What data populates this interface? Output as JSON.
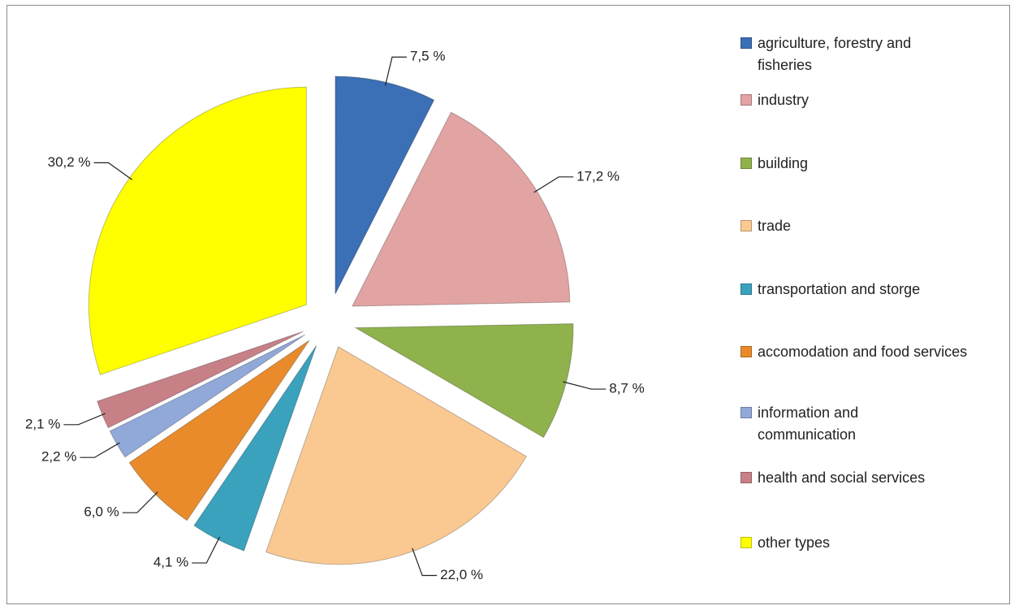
{
  "chart_data": {
    "type": "pie",
    "categories": [
      "agriculture, forestry and fisheries",
      "industry",
      "building",
      "trade",
      "transportation and storge",
      "accomodation and food services",
      "information and communication",
      "health and social services",
      "other types"
    ],
    "values": [
      7.5,
      17.2,
      8.7,
      22.0,
      4.1,
      6.0,
      2.2,
      2.1,
      30.2
    ],
    "value_labels": [
      "7,5 %",
      "17,2 %",
      "8,7 %",
      "22,0 %",
      "4,1 %",
      "6,0 %",
      "2,2 %",
      "2,1 %",
      "30,2 %"
    ],
    "colors": [
      "#3b6fb6",
      "#e2a3a3",
      "#8fb24c",
      "#fac992",
      "#3aa2bd",
      "#e98b2b",
      "#91a9d8",
      "#c88087",
      "#ffff00"
    ],
    "legend": "right"
  }
}
